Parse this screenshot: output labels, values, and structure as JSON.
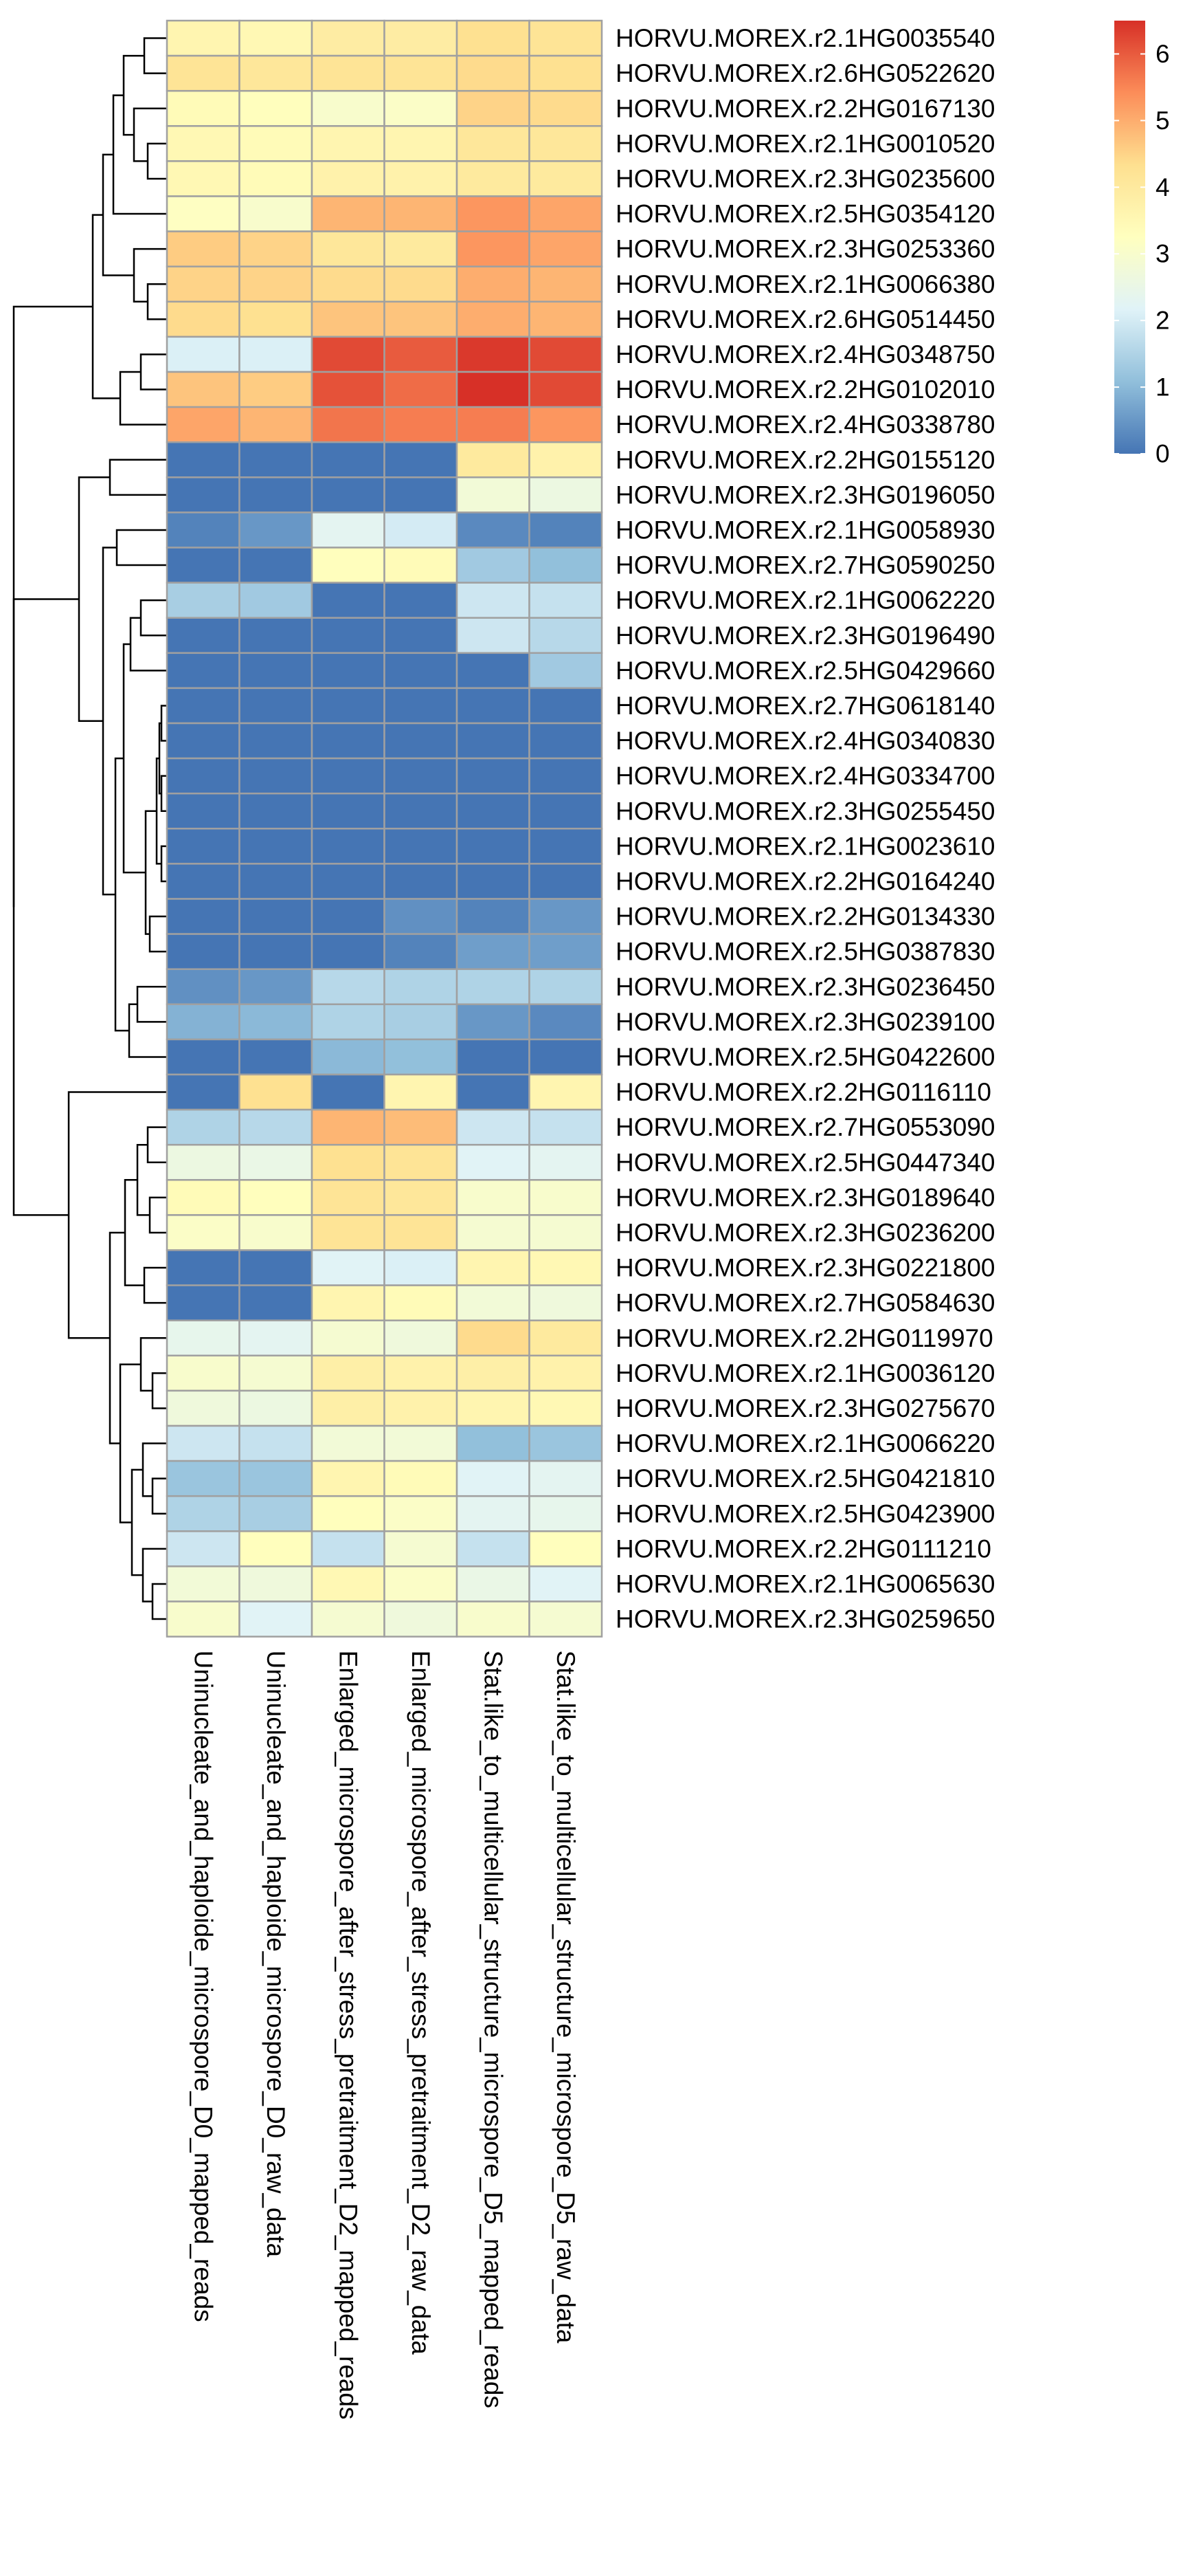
{
  "chart_data": {
    "type": "heatmap",
    "title": "",
    "xlabel": "",
    "ylabel": "",
    "columns": [
      "Uninucleate_and_haploide_microspore_D0_mapped_reads",
      "Uninucleate_and_haploide_microspore_D0_raw_data",
      "Enlarged_microspore_after_stress_pretraitment_D2_mapped_reads",
      "Enlarged_microspore_after_stress_pretraitment_D2_raw_data",
      "Stat.like_to_multicellular_structure_microspore_D5_mapped_reads",
      "Stat.like_to_multicellular_structure_microspore_D5_raw_data"
    ],
    "rows": [
      "HORVU.MOREX.r2.1HG0035540",
      "HORVU.MOREX.r2.6HG0522620",
      "HORVU.MOREX.r2.2HG0167130",
      "HORVU.MOREX.r2.1HG0010520",
      "HORVU.MOREX.r2.3HG0235600",
      "HORVU.MOREX.r2.5HG0354120",
      "HORVU.MOREX.r2.3HG0253360",
      "HORVU.MOREX.r2.1HG0066380",
      "HORVU.MOREX.r2.6HG0514450",
      "HORVU.MOREX.r2.4HG0348750",
      "HORVU.MOREX.r2.2HG0102010",
      "HORVU.MOREX.r2.4HG0338780",
      "HORVU.MOREX.r2.2HG0155120",
      "HORVU.MOREX.r2.3HG0196050",
      "HORVU.MOREX.r2.1HG0058930",
      "HORVU.MOREX.r2.7HG0590250",
      "HORVU.MOREX.r2.1HG0062220",
      "HORVU.MOREX.r2.3HG0196490",
      "HORVU.MOREX.r2.5HG0429660",
      "HORVU.MOREX.r2.7HG0618140",
      "HORVU.MOREX.r2.4HG0340830",
      "HORVU.MOREX.r2.4HG0334700",
      "HORVU.MOREX.r2.3HG0255450",
      "HORVU.MOREX.r2.1HG0023610",
      "HORVU.MOREX.r2.2HG0164240",
      "HORVU.MOREX.r2.2HG0134330",
      "HORVU.MOREX.r2.5HG0387830",
      "HORVU.MOREX.r2.3HG0236450",
      "HORVU.MOREX.r2.3HG0239100",
      "HORVU.MOREX.r2.5HG0422600",
      "HORVU.MOREX.r2.2HG0116110",
      "HORVU.MOREX.r2.7HG0553090",
      "HORVU.MOREX.r2.5HG0447340",
      "HORVU.MOREX.r2.3HG0189640",
      "HORVU.MOREX.r2.3HG0236200",
      "HORVU.MOREX.r2.3HG0221800",
      "HORVU.MOREX.r2.7HG0584630",
      "HORVU.MOREX.r2.2HG0119970",
      "HORVU.MOREX.r2.1HG0036120",
      "HORVU.MOREX.r2.3HG0275670",
      "HORVU.MOREX.r2.1HG0066220",
      "HORVU.MOREX.r2.5HG0421810",
      "HORVU.MOREX.r2.5HG0423900",
      "HORVU.MOREX.r2.2HG0111210",
      "HORVU.MOREX.r2.1HG0065630",
      "HORVU.MOREX.r2.3HG0259650"
    ],
    "values": [
      [
        3.6,
        3.5,
        3.9,
        3.9,
        4.3,
        4.2
      ],
      [
        4.2,
        4.1,
        4.2,
        4.2,
        4.4,
        4.3
      ],
      [
        3.4,
        3.3,
        3.0,
        3.1,
        4.5,
        4.4
      ],
      [
        3.5,
        3.4,
        3.6,
        3.6,
        4.1,
        4.1
      ],
      [
        3.5,
        3.4,
        3.7,
        3.7,
        4.0,
        4.0
      ],
      [
        3.2,
        3.0,
        4.9,
        4.9,
        5.3,
        5.1
      ],
      [
        4.6,
        4.5,
        4.1,
        4.0,
        5.3,
        5.1
      ],
      [
        4.5,
        4.5,
        4.4,
        4.4,
        5.0,
        4.9
      ],
      [
        4.4,
        4.3,
        4.7,
        4.7,
        5.0,
        4.9
      ],
      [
        2.1,
        2.1,
        6.2,
        6.0,
        6.4,
        6.2
      ],
      [
        4.7,
        4.6,
        6.1,
        5.8,
        6.5,
        6.2
      ],
      [
        5.1,
        4.9,
        5.7,
        5.6,
        5.6,
        5.3
      ],
      [
        0.0,
        0.0,
        0.0,
        0.0,
        4.0,
        3.7
      ],
      [
        0.0,
        0.0,
        0.0,
        0.0,
        2.8,
        2.6
      ],
      [
        0.2,
        0.5,
        2.3,
        2.0,
        0.3,
        0.2
      ],
      [
        0.0,
        0.0,
        3.3,
        3.4,
        1.3,
        1.1
      ],
      [
        1.4,
        1.3,
        0.0,
        0.0,
        1.9,
        1.8
      ],
      [
        0.0,
        0.0,
        0.0,
        0.0,
        1.9,
        1.6
      ],
      [
        0.0,
        0.0,
        0.0,
        0.0,
        0.0,
        1.3
      ],
      [
        0.0,
        0.0,
        0.0,
        0.0,
        0.0,
        0.0
      ],
      [
        0.0,
        0.0,
        0.0,
        0.0,
        0.0,
        0.0
      ],
      [
        0.0,
        0.0,
        0.0,
        0.0,
        0.0,
        0.0
      ],
      [
        0.0,
        0.0,
        0.0,
        0.0,
        0.0,
        0.0
      ],
      [
        0.0,
        0.0,
        0.0,
        0.0,
        0.0,
        0.0
      ],
      [
        0.0,
        0.0,
        0.0,
        0.0,
        0.0,
        0.0
      ],
      [
        0.0,
        0.0,
        0.0,
        0.4,
        0.2,
        0.5
      ],
      [
        0.0,
        0.0,
        0.0,
        0.2,
        0.6,
        0.6
      ],
      [
        0.4,
        0.5,
        1.6,
        1.5,
        1.5,
        1.5
      ],
      [
        0.9,
        1.0,
        1.5,
        1.4,
        0.5,
        0.3
      ],
      [
        0.0,
        0.0,
        1.0,
        1.1,
        0.0,
        0.0
      ],
      [
        0.0,
        4.3,
        0.0,
        3.6,
        0.0,
        3.6
      ],
      [
        1.5,
        1.6,
        4.9,
        4.8,
        1.9,
        1.8
      ],
      [
        2.6,
        2.5,
        4.3,
        4.2,
        2.2,
        2.3
      ],
      [
        3.4,
        3.3,
        4.2,
        4.1,
        3.0,
        3.0
      ],
      [
        3.1,
        3.0,
        4.2,
        4.2,
        2.9,
        2.9
      ],
      [
        0.0,
        0.0,
        2.2,
        2.1,
        3.6,
        3.5
      ],
      [
        0.0,
        0.0,
        3.6,
        3.4,
        2.8,
        2.7
      ],
      [
        2.4,
        2.3,
        2.9,
        2.7,
        4.4,
        4.0
      ],
      [
        3.0,
        2.9,
        3.8,
        3.7,
        3.8,
        3.7
      ],
      [
        2.7,
        2.6,
        3.8,
        3.7,
        3.6,
        3.5
      ],
      [
        1.9,
        1.8,
        2.8,
        2.8,
        1.1,
        1.2
      ],
      [
        1.2,
        1.2,
        3.6,
        3.4,
        2.2,
        2.3
      ],
      [
        1.5,
        1.4,
        3.3,
        3.1,
        2.3,
        2.4
      ],
      [
        1.9,
        3.3,
        1.8,
        2.9,
        1.8,
        3.3
      ],
      [
        2.8,
        2.7,
        3.5,
        3.1,
        2.5,
        2.2
      ],
      [
        3.0,
        2.2,
        2.9,
        2.7,
        3.0,
        2.9
      ]
    ],
    "value_range": [
      0,
      6.5
    ],
    "colorscale": [
      "#4575B4",
      "#91BFDB",
      "#E0F3F8",
      "#FFFFBF",
      "#FEE090",
      "#FC8D59",
      "#D73027"
    ],
    "colorbar": {
      "ticks": [
        "0",
        "1",
        "2",
        "3",
        "4",
        "5",
        "6"
      ],
      "placement": "top-right"
    },
    "cell_border_color": "#a0a0a0",
    "row_dendrogram": true,
    "column_dendrogram": false,
    "grid": false,
    "legend": "colorbar"
  }
}
